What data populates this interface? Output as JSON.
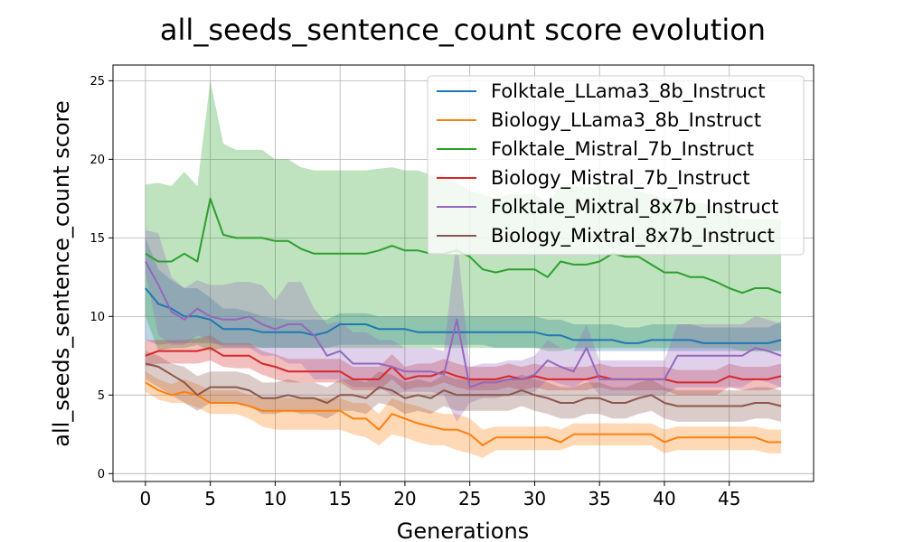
{
  "chart_data": {
    "type": "line",
    "title": "all_seeds_sentence_count score evolution",
    "xlabel": "Generations",
    "ylabel": "all_seeds_sentence_count score",
    "xlim": [
      -2.5,
      51.5
    ],
    "ylim": [
      -0.5,
      26.0
    ],
    "xticks": [
      0,
      5,
      10,
      15,
      20,
      25,
      30,
      35,
      40,
      45
    ],
    "yticks": [
      0,
      5,
      10,
      15,
      20,
      25
    ],
    "grid": true,
    "legend_position": "top-right",
    "series": [
      {
        "name": "Folktale_LLama3_8b_Instruct",
        "color": "#1f77b4",
        "values": [
          11.8,
          10.8,
          10.5,
          10.0,
          10.0,
          9.8,
          9.2,
          9.2,
          9.2,
          9.0,
          9.0,
          9.0,
          9.0,
          8.8,
          9.0,
          9.5,
          9.5,
          9.5,
          9.2,
          9.2,
          9.2,
          9.0,
          9.0,
          9.0,
          9.0,
          9.0,
          9.0,
          9.0,
          9.0,
          9.0,
          9.0,
          8.8,
          8.8,
          8.5,
          8.5,
          8.5,
          8.5,
          8.3,
          8.3,
          8.5,
          8.5,
          8.5,
          8.5,
          8.3,
          8.3,
          8.3,
          8.3,
          8.3,
          8.3,
          8.5
        ],
        "lower": [
          8.5,
          8.2,
          8.3,
          8.3,
          8.3,
          8.3,
          8.2,
          8.2,
          8.2,
          8.0,
          8.0,
          8.0,
          8.0,
          8.0,
          8.0,
          8.2,
          8.2,
          8.2,
          8.2,
          8.2,
          8.2,
          8.2,
          8.2,
          8.2,
          8.2,
          8.2,
          8.2,
          8.0,
          8.0,
          8.0,
          8.0,
          8.0,
          8.0,
          7.8,
          7.8,
          7.8,
          7.8,
          7.8,
          7.8,
          7.8,
          7.8,
          7.8,
          7.8,
          7.8,
          7.8,
          7.8,
          7.8,
          7.8,
          7.8,
          7.8
        ],
        "upper": [
          15.0,
          13.0,
          12.3,
          11.8,
          11.8,
          11.2,
          10.5,
          10.5,
          10.3,
          10.0,
          9.9,
          9.8,
          9.8,
          9.8,
          9.8,
          10.2,
          10.2,
          10.2,
          10.0,
          10.0,
          10.0,
          10.0,
          10.0,
          10.0,
          10.0,
          10.0,
          10.0,
          10.0,
          10.0,
          10.0,
          10.0,
          9.8,
          9.8,
          9.5,
          9.5,
          9.5,
          9.5,
          9.3,
          9.3,
          9.5,
          9.5,
          9.5,
          9.5,
          9.3,
          9.3,
          9.3,
          9.3,
          9.3,
          9.3,
          9.7
        ]
      },
      {
        "name": "Biology_LLama3_8b_Instruct",
        "color": "#ff7f0e",
        "values": [
          5.8,
          5.3,
          5.0,
          5.2,
          5.0,
          4.5,
          4.5,
          4.5,
          4.3,
          4.0,
          4.0,
          4.0,
          4.0,
          4.0,
          4.0,
          4.0,
          3.5,
          3.5,
          2.8,
          3.8,
          3.5,
          3.2,
          3.0,
          2.8,
          2.8,
          2.5,
          1.8,
          2.3,
          2.3,
          2.3,
          2.3,
          2.3,
          2.0,
          2.5,
          2.5,
          2.5,
          2.5,
          2.5,
          2.5,
          2.5,
          2.0,
          2.3,
          2.3,
          2.3,
          2.3,
          2.3,
          2.3,
          2.3,
          2.0,
          2.0
        ],
        "lower": [
          5.2,
          4.7,
          4.5,
          4.5,
          4.2,
          3.8,
          3.8,
          3.8,
          3.5,
          3.0,
          2.8,
          2.8,
          2.8,
          2.8,
          2.8,
          2.8,
          2.5,
          2.3,
          1.8,
          2.5,
          2.3,
          2.0,
          1.8,
          1.8,
          1.5,
          1.3,
          1.0,
          1.5,
          1.5,
          1.5,
          1.5,
          1.5,
          1.5,
          1.8,
          1.8,
          1.8,
          1.8,
          1.8,
          1.8,
          1.8,
          1.3,
          1.5,
          1.5,
          1.5,
          1.5,
          1.5,
          1.5,
          1.5,
          1.3,
          1.3
        ],
        "upper": [
          6.5,
          6.0,
          5.7,
          6.0,
          5.7,
          5.3,
          5.3,
          5.3,
          5.0,
          4.8,
          4.8,
          4.8,
          4.8,
          4.8,
          4.8,
          4.8,
          4.5,
          4.5,
          3.8,
          4.8,
          4.5,
          4.3,
          4.0,
          3.8,
          3.8,
          3.5,
          2.8,
          3.0,
          3.0,
          3.0,
          3.0,
          3.0,
          2.8,
          3.2,
          3.2,
          3.2,
          3.2,
          3.2,
          3.2,
          3.2,
          2.8,
          3.0,
          3.0,
          3.0,
          3.0,
          3.0,
          3.0,
          3.0,
          2.8,
          2.8
        ]
      },
      {
        "name": "Folktale_Mistral_7b_Instruct",
        "color": "#2ca02c",
        "values": [
          14.0,
          13.5,
          13.5,
          14.0,
          13.5,
          17.5,
          15.2,
          15.0,
          15.0,
          15.0,
          14.8,
          14.8,
          14.3,
          14.0,
          14.0,
          14.0,
          14.0,
          14.0,
          14.2,
          14.5,
          14.2,
          14.2,
          14.0,
          14.0,
          14.2,
          13.8,
          13.0,
          12.8,
          13.0,
          13.0,
          13.0,
          12.5,
          13.5,
          13.3,
          13.3,
          13.5,
          14.0,
          13.8,
          13.8,
          13.3,
          12.8,
          12.8,
          12.5,
          12.5,
          12.2,
          11.8,
          11.5,
          11.8,
          11.8,
          11.5
        ],
        "lower": [
          10.0,
          7.8,
          8.0,
          8.0,
          8.2,
          7.8,
          8.0,
          8.0,
          8.0,
          8.0,
          8.0,
          8.0,
          8.0,
          8.0,
          8.0,
          8.0,
          8.0,
          8.0,
          8.0,
          8.0,
          8.0,
          8.0,
          8.0,
          8.0,
          8.0,
          8.0,
          8.0,
          8.0,
          8.0,
          8.0,
          8.0,
          7.8,
          7.8,
          8.0,
          8.0,
          8.0,
          8.0,
          8.0,
          8.0,
          8.0,
          8.0,
          8.0,
          8.0,
          8.0,
          8.0,
          8.0,
          7.8,
          7.8,
          7.8,
          7.8
        ],
        "upper": [
          18.4,
          18.5,
          18.3,
          19.2,
          18.3,
          25.0,
          21.0,
          20.6,
          20.6,
          20.6,
          20.0,
          20.0,
          19.5,
          19.3,
          19.3,
          19.3,
          19.3,
          19.3,
          19.4,
          19.5,
          19.3,
          19.3,
          19.0,
          19.0,
          18.5,
          18.0,
          17.8,
          17.5,
          17.8,
          17.8,
          17.8,
          17.2,
          18.3,
          18.3,
          18.2,
          18.3,
          18.5,
          18.2,
          18.0,
          17.8,
          17.5,
          17.5,
          17.3,
          17.2,
          17.0,
          16.7,
          16.2,
          16.2,
          16.2,
          16.2
        ]
      },
      {
        "name": "Biology_Mistral_7b_Instruct",
        "color": "#d62728",
        "values": [
          7.5,
          7.8,
          7.8,
          7.8,
          7.8,
          8.0,
          7.5,
          7.5,
          7.5,
          7.0,
          6.8,
          6.5,
          6.5,
          6.5,
          6.5,
          6.5,
          6.0,
          6.0,
          6.0,
          6.8,
          6.0,
          6.2,
          6.2,
          6.5,
          6.2,
          6.0,
          6.0,
          6.0,
          6.2,
          6.0,
          6.2,
          6.0,
          6.0,
          6.0,
          6.0,
          6.2,
          6.0,
          6.0,
          6.0,
          6.0,
          6.0,
          5.8,
          5.8,
          5.8,
          5.8,
          6.2,
          6.0,
          6.0,
          6.0,
          6.2
        ],
        "lower": [
          6.8,
          7.0,
          7.0,
          7.0,
          7.0,
          7.2,
          6.8,
          6.7,
          6.7,
          6.3,
          6.0,
          5.8,
          5.8,
          5.8,
          5.8,
          5.8,
          5.3,
          5.3,
          5.3,
          6.0,
          5.3,
          5.5,
          5.5,
          5.8,
          5.5,
          5.3,
          5.3,
          5.3,
          5.5,
          5.3,
          5.5,
          5.3,
          5.3,
          5.3,
          5.3,
          5.5,
          5.3,
          5.3,
          5.3,
          5.3,
          5.3,
          5.0,
          5.0,
          5.0,
          5.0,
          5.5,
          5.3,
          5.3,
          5.3,
          5.5
        ],
        "upper": [
          8.5,
          8.5,
          8.5,
          8.5,
          8.6,
          8.8,
          8.3,
          8.3,
          8.3,
          7.8,
          7.6,
          7.3,
          7.3,
          7.3,
          7.3,
          7.3,
          6.8,
          6.8,
          6.8,
          7.6,
          6.8,
          7.0,
          7.0,
          7.3,
          7.0,
          6.8,
          6.8,
          6.8,
          7.0,
          6.8,
          7.0,
          6.8,
          6.8,
          6.8,
          6.8,
          7.0,
          6.8,
          6.8,
          6.8,
          6.8,
          6.8,
          6.6,
          6.6,
          6.6,
          6.6,
          7.0,
          6.8,
          6.8,
          6.8,
          7.0
        ]
      },
      {
        "name": "Folktale_Mixtral_8x7b_Instruct",
        "color": "#9467bd",
        "values": [
          13.5,
          12.0,
          10.3,
          9.8,
          10.5,
          10.0,
          9.8,
          9.8,
          10.0,
          9.5,
          9.2,
          9.5,
          9.5,
          8.8,
          7.5,
          7.8,
          7.0,
          7.0,
          7.0,
          6.8,
          6.5,
          6.5,
          6.5,
          6.3,
          9.8,
          5.5,
          5.8,
          5.8,
          6.0,
          6.0,
          6.3,
          7.2,
          6.8,
          6.5,
          8.0,
          6.0,
          6.0,
          6.0,
          6.0,
          6.0,
          6.0,
          7.5,
          7.5,
          7.5,
          7.5,
          7.5,
          7.5,
          8.0,
          7.8,
          7.5
        ],
        "lower": [
          12.8,
          8.8,
          8.2,
          8.2,
          8.8,
          8.5,
          8.0,
          8.0,
          8.0,
          7.5,
          7.5,
          7.0,
          7.0,
          6.0,
          6.0,
          6.0,
          5.5,
          5.5,
          5.5,
          5.0,
          5.2,
          5.2,
          5.2,
          5.0,
          3.3,
          4.5,
          4.8,
          4.8,
          5.0,
          5.0,
          5.2,
          6.0,
          5.7,
          5.5,
          6.0,
          5.0,
          5.0,
          5.0,
          5.0,
          5.0,
          5.0,
          5.5,
          5.5,
          5.5,
          5.5,
          5.5,
          5.5,
          6.0,
          5.8,
          5.5
        ],
        "upper": [
          15.5,
          15.3,
          12.5,
          11.8,
          12.3,
          12.0,
          12.0,
          12.2,
          12.2,
          12.0,
          11.0,
          12.2,
          12.2,
          10.5,
          9.5,
          9.7,
          9.0,
          9.0,
          8.5,
          8.5,
          8.0,
          8.0,
          8.0,
          7.8,
          15.0,
          6.8,
          7.0,
          7.0,
          7.2,
          7.2,
          7.5,
          8.5,
          8.0,
          7.8,
          9.5,
          7.2,
          7.2,
          7.2,
          7.2,
          7.2,
          7.2,
          9.5,
          9.5,
          9.5,
          9.5,
          9.5,
          9.5,
          10.0,
          9.8,
          9.5
        ]
      },
      {
        "name": "Biology_Mixtral_8x7b_Instruct",
        "color": "#8c564b",
        "values": [
          7.0,
          6.8,
          6.3,
          5.8,
          5.0,
          5.5,
          5.5,
          5.5,
          5.3,
          4.8,
          4.8,
          5.0,
          4.8,
          4.8,
          4.5,
          5.0,
          5.0,
          4.8,
          5.5,
          5.3,
          4.8,
          5.0,
          4.8,
          5.3,
          5.0,
          5.0,
          5.0,
          5.0,
          5.0,
          5.3,
          5.0,
          4.8,
          4.5,
          4.5,
          4.8,
          4.8,
          4.5,
          4.5,
          4.8,
          5.0,
          4.5,
          4.3,
          4.3,
          4.3,
          4.3,
          4.3,
          4.3,
          4.5,
          4.5,
          4.3
        ],
        "lower": [
          6.0,
          5.5,
          5.0,
          4.5,
          4.0,
          4.5,
          4.5,
          4.5,
          4.3,
          3.8,
          3.8,
          4.0,
          3.8,
          3.8,
          3.5,
          4.0,
          4.0,
          3.8,
          4.5,
          4.3,
          3.8,
          4.0,
          3.8,
          4.3,
          4.0,
          4.0,
          4.0,
          4.0,
          4.0,
          4.3,
          4.0,
          3.8,
          3.5,
          3.5,
          3.8,
          3.8,
          3.5,
          3.5,
          3.8,
          4.0,
          3.5,
          3.3,
          3.3,
          3.3,
          3.3,
          3.3,
          3.3,
          3.5,
          3.5,
          3.3
        ],
        "upper": [
          7.8,
          7.5,
          7.0,
          6.8,
          6.2,
          6.5,
          6.5,
          6.5,
          6.3,
          5.8,
          5.8,
          6.0,
          5.8,
          5.8,
          5.5,
          6.0,
          6.0,
          5.8,
          6.5,
          6.3,
          5.8,
          6.0,
          5.8,
          6.3,
          6.0,
          6.0,
          6.0,
          6.0,
          6.0,
          6.3,
          6.0,
          5.8,
          5.5,
          5.5,
          5.8,
          5.8,
          5.5,
          5.5,
          5.8,
          6.0,
          5.5,
          5.3,
          5.3,
          5.3,
          5.3,
          5.3,
          5.3,
          5.5,
          5.5,
          5.3
        ]
      }
    ]
  }
}
